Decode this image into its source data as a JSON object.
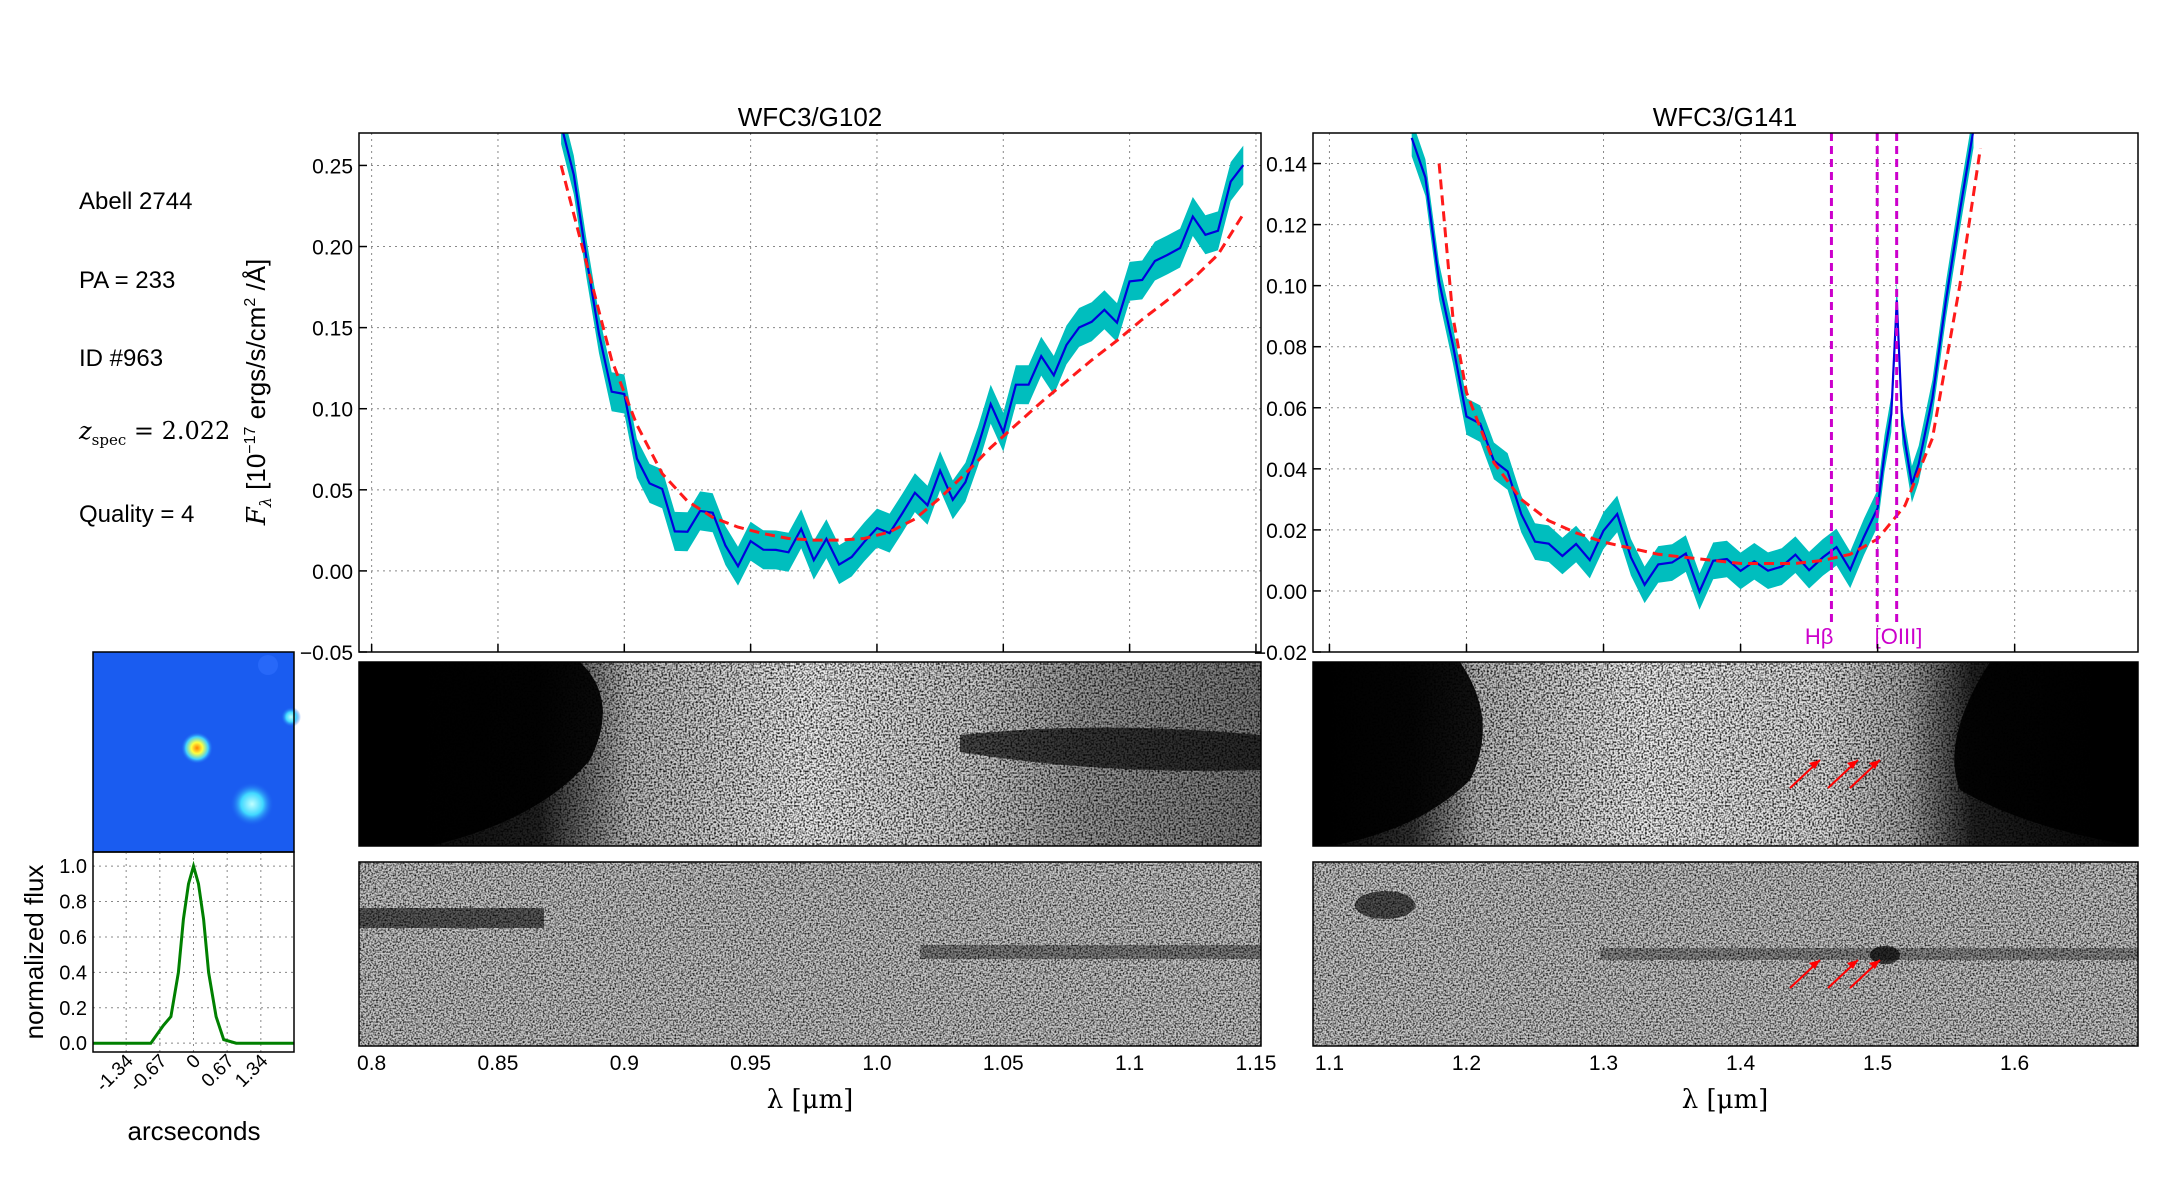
{
  "info": {
    "field": "Abell 2744",
    "pa": "PA = 233",
    "id": "ID #963",
    "z_label": "z",
    "z_sub": "spec",
    "z_value": " = 2.022",
    "quality": "Quality = 4"
  },
  "colors": {
    "error_band": "#00bebe",
    "spectrum": "#0000dd",
    "model": "#ff1a1a",
    "lines": "#cc00cc",
    "profile": "#008000",
    "arrows": "#ff0000"
  },
  "chart_data": [
    {
      "type": "line",
      "panel": "G102 spectrum",
      "title": "WFC3/G102",
      "xlabel": "λ [μm]",
      "ylabel": "F_λ [10^-17 ergs/s/cm² /Å]",
      "xlim": [
        0.795,
        1.152
      ],
      "ylim": [
        -0.05,
        0.27
      ],
      "xticks": [
        "0.8",
        "0.85",
        "0.9",
        "0.95",
        "1.0",
        "1.05",
        "1.1",
        "1.15"
      ],
      "xtick_values": [
        0.8,
        0.85,
        0.9,
        0.95,
        1.0,
        1.05,
        1.1,
        1.15
      ],
      "yticks": [
        "−0.05",
        "0.00",
        "0.05",
        "0.10",
        "0.15",
        "0.20",
        "0.25"
      ],
      "ytick_values": [
        -0.05,
        0.0,
        0.05,
        0.1,
        0.15,
        0.2,
        0.25
      ],
      "grid": true,
      "series": [
        {
          "role": "spectrum",
          "style": "blue line with cyan error band",
          "x": [
            0.875,
            0.88,
            0.885,
            0.89,
            0.895,
            0.9,
            0.905,
            0.91,
            0.915,
            0.92,
            0.925,
            0.93,
            0.935,
            0.94,
            0.945,
            0.95,
            0.955,
            0.96,
            0.965,
            0.97,
            0.975,
            0.98,
            0.985,
            0.99,
            0.995,
            1.0,
            1.005,
            1.01,
            1.015,
            1.02,
            1.025,
            1.03,
            1.035,
            1.04,
            1.045,
            1.05,
            1.055,
            1.06,
            1.065,
            1.07,
            1.075,
            1.08,
            1.085,
            1.09,
            1.095,
            1.1,
            1.105,
            1.11,
            1.115,
            1.12,
            1.125,
            1.13,
            1.135,
            1.14,
            1.145
          ],
          "y": [
            0.27,
            0.23,
            0.2,
            0.16,
            0.12,
            0.1,
            0.08,
            0.06,
            0.04,
            0.03,
            0.02,
            0.025,
            0.02,
            0.015,
            0.01,
            0.02,
            0.015,
            0.01,
            0.02,
            0.015,
            0.02,
            0.01,
            0.02,
            0.015,
            0.02,
            0.025,
            0.02,
            0.03,
            0.04,
            0.045,
            0.05,
            0.06,
            0.07,
            0.08,
            0.09,
            0.1,
            0.105,
            0.11,
            0.12,
            0.125,
            0.13,
            0.14,
            0.15,
            0.155,
            0.16,
            0.165,
            0.17,
            0.18,
            0.19,
            0.2,
            0.21,
            0.215,
            0.22,
            0.24,
            0.26
          ]
        },
        {
          "role": "model",
          "style": "red dashed",
          "x": [
            0.875,
            0.885,
            0.895,
            0.905,
            0.915,
            0.925,
            0.935,
            0.945,
            0.955,
            0.965,
            0.975,
            0.985,
            0.995,
            1.005,
            1.015,
            1.025,
            1.035,
            1.045,
            1.055,
            1.065,
            1.075,
            1.085,
            1.095,
            1.105,
            1.115,
            1.125,
            1.135,
            1.145
          ],
          "y": [
            0.25,
            0.19,
            0.13,
            0.09,
            0.06,
            0.043,
            0.033,
            0.027,
            0.023,
            0.02,
            0.019,
            0.019,
            0.02,
            0.024,
            0.032,
            0.045,
            0.06,
            0.076,
            0.09,
            0.104,
            0.117,
            0.13,
            0.142,
            0.155,
            0.167,
            0.18,
            0.195,
            0.22
          ]
        }
      ]
    },
    {
      "type": "line",
      "panel": "G141 spectrum",
      "title": "WFC3/G141",
      "xlabel": "λ [μm]",
      "xlim": [
        1.088,
        1.69
      ],
      "ylim": [
        -0.02,
        0.15
      ],
      "xticks": [
        "1.1",
        "1.2",
        "1.3",
        "1.4",
        "1.5",
        "1.6"
      ],
      "xtick_values": [
        1.1,
        1.2,
        1.3,
        1.4,
        1.5,
        1.6
      ],
      "yticks": [
        "−0.02",
        "0.00",
        "0.02",
        "0.04",
        "0.06",
        "0.08",
        "0.10",
        "0.12",
        "0.14"
      ],
      "ytick_values": [
        -0.02,
        0.0,
        0.02,
        0.04,
        0.06,
        0.08,
        0.1,
        0.12,
        0.14
      ],
      "grid": true,
      "lines": [
        {
          "x": 1.4663,
          "label": "Hβ"
        },
        {
          "x": 1.4997,
          "label": ""
        },
        {
          "x": 1.5139,
          "label": "[OIII]"
        }
      ],
      "series": [
        {
          "role": "spectrum",
          "style": "blue line with cyan error band",
          "x": [
            1.16,
            1.17,
            1.18,
            1.19,
            1.2,
            1.21,
            1.22,
            1.23,
            1.24,
            1.25,
            1.26,
            1.27,
            1.28,
            1.29,
            1.3,
            1.31,
            1.32,
            1.33,
            1.34,
            1.35,
            1.36,
            1.37,
            1.38,
            1.39,
            1.4,
            1.41,
            1.42,
            1.43,
            1.44,
            1.45,
            1.46,
            1.47,
            1.48,
            1.49,
            1.5,
            1.505,
            1.51,
            1.514,
            1.518,
            1.525,
            1.53,
            1.54,
            1.55,
            1.56,
            1.57
          ],
          "y": [
            0.15,
            0.13,
            0.1,
            0.075,
            0.06,
            0.05,
            0.04,
            0.035,
            0.028,
            0.022,
            0.02,
            0.016,
            0.018,
            0.01,
            0.015,
            0.02,
            0.012,
            0.008,
            0.01,
            0.012,
            0.008,
            0.005,
            0.01,
            0.006,
            0.008,
            0.01,
            0.007,
            0.005,
            0.01,
            0.012,
            0.01,
            0.015,
            0.012,
            0.02,
            0.03,
            0.04,
            0.06,
            0.095,
            0.06,
            0.04,
            0.04,
            0.06,
            0.09,
            0.13,
            0.15
          ]
        },
        {
          "role": "model",
          "style": "red dashed",
          "x": [
            1.18,
            1.19,
            1.2,
            1.22,
            1.24,
            1.26,
            1.28,
            1.3,
            1.32,
            1.34,
            1.36,
            1.38,
            1.4,
            1.42,
            1.44,
            1.46,
            1.48,
            1.5,
            1.52,
            1.54,
            1.56,
            1.575
          ],
          "y": [
            0.14,
            0.09,
            0.065,
            0.042,
            0.03,
            0.023,
            0.019,
            0.016,
            0.014,
            0.012,
            0.011,
            0.01,
            0.009,
            0.009,
            0.009,
            0.01,
            0.012,
            0.017,
            0.028,
            0.05,
            0.1,
            0.145
          ]
        }
      ]
    },
    {
      "type": "line",
      "panel": "spatial profile",
      "xlabel": "arcseconds",
      "ylabel": "normalized flux",
      "xticks": [
        "-1.34",
        "-0.67",
        "0",
        "0.67",
        "1.34"
      ],
      "xtick_values": [
        -1.34,
        -0.67,
        0,
        0.67,
        1.34
      ],
      "yticks": [
        "0.0",
        "0.2",
        "0.4",
        "0.6",
        "0.8",
        "1.0"
      ],
      "ytick_values": [
        0,
        0.2,
        0.4,
        0.6,
        0.8,
        1.0
      ],
      "xlim": [
        -2.0,
        2.0
      ],
      "ylim": [
        -0.05,
        1.08
      ],
      "series": [
        {
          "role": "profile",
          "x": [
            -2.0,
            -0.85,
            -0.6,
            -0.45,
            -0.3,
            -0.2,
            -0.1,
            0,
            0.1,
            0.2,
            0.3,
            0.45,
            0.6,
            0.85,
            2.0
          ],
          "y": [
            0.0,
            0.0,
            0.1,
            0.15,
            0.4,
            0.7,
            0.9,
            1.0,
            0.9,
            0.7,
            0.4,
            0.15,
            0.02,
            0.0,
            0.0
          ]
        }
      ]
    }
  ]
}
